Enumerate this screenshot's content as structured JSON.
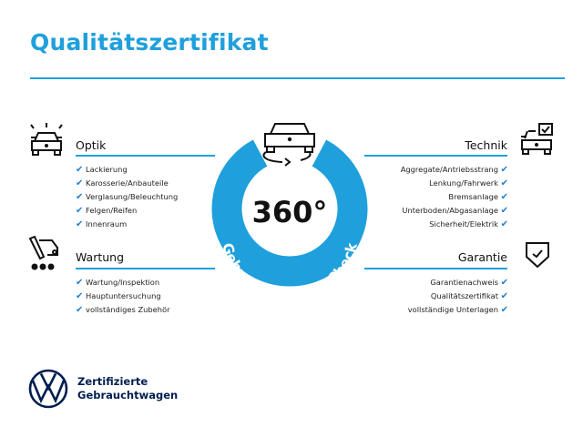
{
  "title": "Qualitätszertifikat",
  "center": {
    "big_text": "360°",
    "ring_text": "Gebrauchtwagen-Check",
    "ring_color": "#1fa0dc"
  },
  "sections": {
    "optik": {
      "title": "Optik",
      "icon": "car-lights-icon",
      "items": [
        "Lackierung",
        "Karosserie/Anbauteile",
        "Verglasung/Beleuchtung",
        "Felgen/Reifen",
        "Innenraum"
      ]
    },
    "wartung": {
      "title": "Wartung",
      "icon": "maintenance-truck-icon",
      "items": [
        "Wartung/Inspektion",
        "Hauptuntersuchung",
        "vollständiges Zubehör"
      ]
    },
    "technik": {
      "title": "Technik",
      "icon": "car-checklist-icon",
      "items": [
        "Aggregate/Antriebsstrang",
        "Lenkung/Fahrwerk",
        "Bremsanlage",
        "Unterboden/Abgasanlage",
        "Sicherheit/Elektrik"
      ]
    },
    "garantie": {
      "title": "Garantie",
      "icon": "shield-check-icon",
      "items": [
        "Garantienachweis",
        "Qualitätszertifikat",
        "vollständige Unterlagen"
      ]
    }
  },
  "check_mark": "✔",
  "brand": {
    "line1": "Zertifizierte",
    "line2": "Gebrauchtwagen",
    "logo": "vw-logo",
    "color": "#001e50"
  },
  "accent_color": "#1fa0dc",
  "check_color": "#1f7fd4"
}
